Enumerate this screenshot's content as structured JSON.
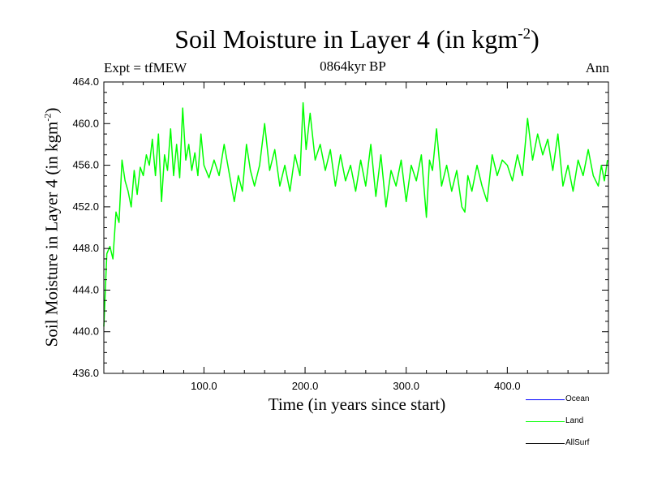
{
  "header": {
    "title_main": "Soil Moisture in Layer 4 (in kgm",
    "title_sup": "-2",
    "title_end": ")",
    "expt": "Expt = tfMEW",
    "subtitle": "0864kyr BP",
    "season": "Ann"
  },
  "axes": {
    "xlabel": "Time (in years since start)",
    "ylabel_main": "Soil Moisture in Layer 4 (in kgm",
    "ylabel_sup": "-2",
    "ylabel_end": ")"
  },
  "legend": [
    {
      "label": "Ocean",
      "color": "#0000ff"
    },
    {
      "label": "Land",
      "color": "#00ff00"
    },
    {
      "label": "AllSurf",
      "color": "#000000"
    }
  ],
  "chart_data": {
    "type": "line",
    "title": "Soil Moisture in Layer 4 (in kgm-2)",
    "xlabel": "Time (in years since start)",
    "ylabel": "Soil Moisture in Layer 4 (in kgm-2)",
    "xlim": [
      1,
      500
    ],
    "ylim": [
      436.0,
      464.0
    ],
    "xticks": [
      100,
      200,
      300,
      400
    ],
    "xtick_labels": [
      "100.0",
      "200.0",
      "300.0",
      "400.0"
    ],
    "yticks": [
      436,
      440,
      444,
      448,
      452,
      456,
      460,
      464
    ],
    "ytick_labels": [
      "436.0",
      "440.0",
      "444.0",
      "448.0",
      "452.0",
      "456.0",
      "460.0",
      "464.0"
    ],
    "grid": false,
    "legend_position": "bottom-right",
    "series": [
      {
        "name": "Land",
        "color": "#00ff00",
        "x": [
          1,
          4,
          7,
          10,
          13,
          16,
          19,
          22,
          25,
          28,
          31,
          34,
          37,
          40,
          43,
          46,
          49,
          52,
          55,
          58,
          61,
          64,
          67,
          70,
          73,
          76,
          79,
          82,
          85,
          88,
          91,
          94,
          97,
          100,
          105,
          110,
          115,
          120,
          125,
          130,
          134,
          138,
          142,
          146,
          150,
          155,
          160,
          165,
          170,
          175,
          180,
          185,
          190,
          195,
          198,
          201,
          205,
          210,
          215,
          220,
          225,
          230,
          235,
          240,
          245,
          250,
          255,
          260,
          265,
          270,
          275,
          280,
          285,
          290,
          295,
          300,
          305,
          310,
          315,
          320,
          323,
          326,
          330,
          335,
          340,
          345,
          350,
          355,
          358,
          361,
          365,
          370,
          375,
          380,
          385,
          390,
          395,
          400,
          405,
          410,
          415,
          420,
          425,
          430,
          435,
          440,
          445,
          450,
          455,
          460,
          465,
          470,
          475,
          480,
          485,
          490,
          493,
          496,
          499
        ],
        "values": [
          440.5,
          447.5,
          448.2,
          447.0,
          451.5,
          450.5,
          456.5,
          454.5,
          453.5,
          452.0,
          455.5,
          453.2,
          455.8,
          455.0,
          457.0,
          456.0,
          458.5,
          455.0,
          459.0,
          452.5,
          457.0,
          455.5,
          459.5,
          455.0,
          458.0,
          454.8,
          461.5,
          456.5,
          458.0,
          455.5,
          457.2,
          455.0,
          459.0,
          456.0,
          454.8,
          456.5,
          455.0,
          458.0,
          455.2,
          452.5,
          455.0,
          453.5,
          458.0,
          455.5,
          454.0,
          456.0,
          460.0,
          455.5,
          457.5,
          454.0,
          456.0,
          453.5,
          457.0,
          455.0,
          462.0,
          457.5,
          461.0,
          456.5,
          458.0,
          455.5,
          457.5,
          454.0,
          457.0,
          454.5,
          456.0,
          453.5,
          456.5,
          454.0,
          458.0,
          453.0,
          457.0,
          452.0,
          455.5,
          454.0,
          456.5,
          452.5,
          456.0,
          454.5,
          457.0,
          451.0,
          456.5,
          455.5,
          459.5,
          454.0,
          456.0,
          453.5,
          455.5,
          452.0,
          451.5,
          455.0,
          453.5,
          456.0,
          454.0,
          452.5,
          457.0,
          455.0,
          456.5,
          456.0,
          454.5,
          457.0,
          455.0,
          460.5,
          456.5,
          459.0,
          457.0,
          458.5,
          455.5,
          459.0,
          454.0,
          456.0,
          453.5,
          456.5,
          455.0,
          457.5,
          455.0,
          454.0,
          456.0,
          454.5,
          456.5
        ]
      },
      {
        "name": "Ocean",
        "color": "#0000ff",
        "x": [],
        "values": []
      },
      {
        "name": "AllSurf",
        "color": "#000000",
        "x": [],
        "values": []
      }
    ]
  }
}
